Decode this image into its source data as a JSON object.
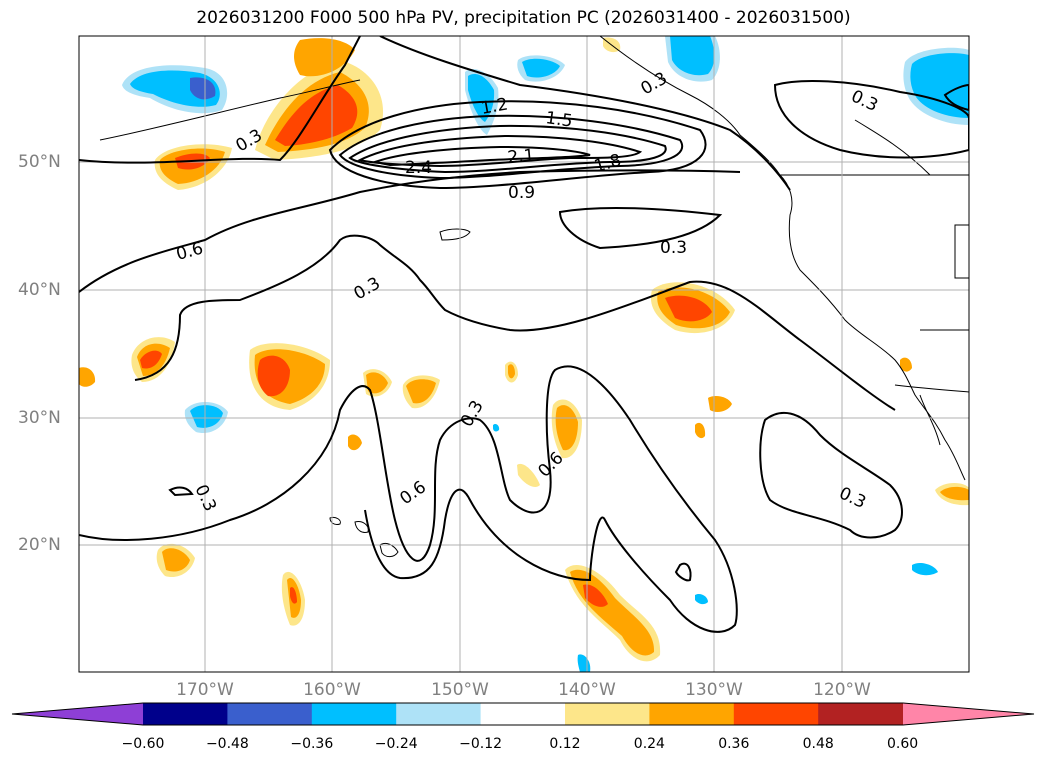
{
  "title": "2026031200 F000 500 hPa PV, precipitation PC (2026031400 - 2026031500)",
  "lat_labels": [
    "50°N",
    "40°N",
    "30°N",
    "20°N"
  ],
  "lon_labels": [
    "170°W",
    "160°W",
    "150°W",
    "140°W",
    "130°W",
    "120°W"
  ],
  "contour_labels": [
    "0.3",
    "0.6",
    "0.9",
    "1.2",
    "1.5",
    "1.8",
    "2.1",
    "2.4"
  ],
  "colorbar": {
    "ticks": [
      "−0.60",
      "−0.48",
      "−0.36",
      "−0.24",
      "−0.12",
      "0.12",
      "0.24",
      "0.36",
      "0.48",
      "0.60"
    ],
    "colors": [
      "#8e3fd6",
      "#00008b",
      "#3a5fcd",
      "#00bfff",
      "#aee2f7",
      "#ffffff",
      "#fde68a",
      "#ffa500",
      "#ff4500",
      "#b22222",
      "#ff85a8"
    ]
  }
}
